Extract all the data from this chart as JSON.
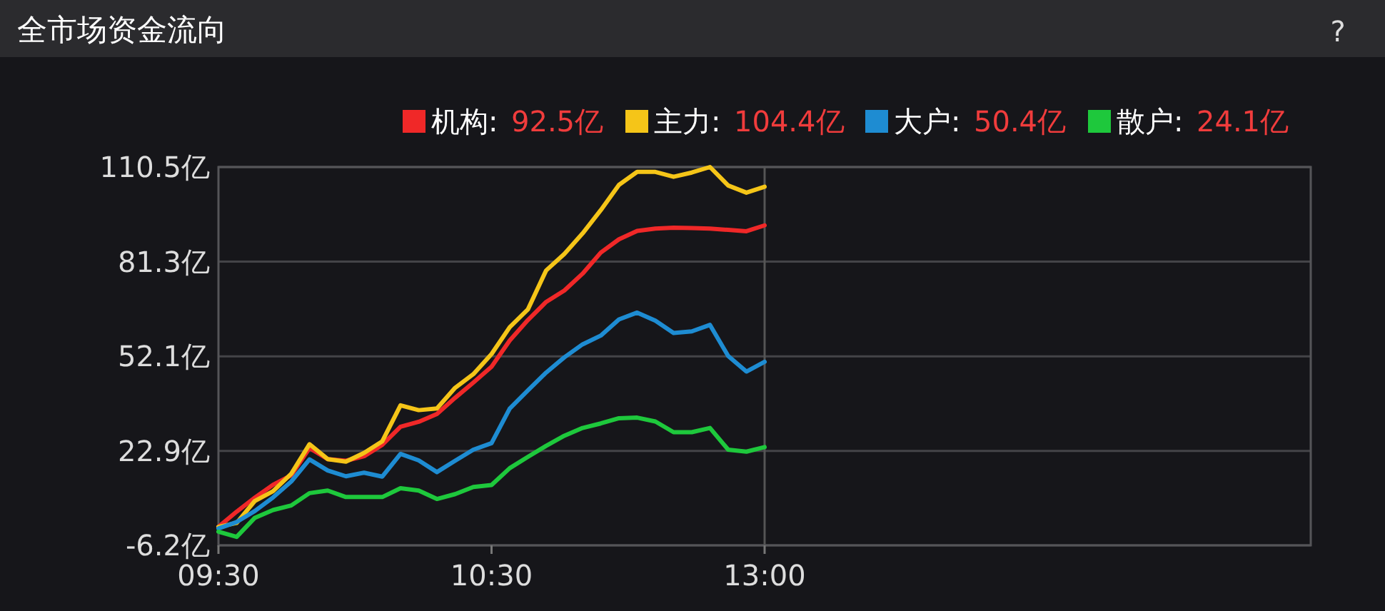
{
  "chart_data": {
    "type": "line",
    "title": "全市场资金流向",
    "legend": "top right",
    "grid": "y",
    "line_style": "solid",
    "marker": "none",
    "categories": [
      "09:30",
      null,
      null,
      null,
      null,
      null,
      null,
      null,
      null,
      null,
      null,
      null,
      null,
      null,
      null,
      "10:30",
      null,
      null,
      null,
      null,
      null,
      null,
      null,
      null,
      null,
      null,
      null,
      null,
      null,
      null,
      "13:00",
      null,
      null,
      null,
      null,
      null,
      null,
      null,
      null,
      null,
      null,
      null,
      null,
      null,
      null,
      null,
      null,
      null,
      null,
      null,
      null,
      null,
      null,
      null,
      null,
      null,
      null,
      null,
      null,
      null,
      null
    ],
    "ylim": [
      -6.2,
      110.5
    ],
    "yticks": [
      {
        "value": -6.2,
        "label": "-6.2亿"
      },
      {
        "value": 22.9,
        "label": "22.9亿"
      },
      {
        "value": 52.1,
        "label": "52.1亿"
      },
      {
        "value": 81.3,
        "label": "81.3亿"
      },
      {
        "value": 110.5,
        "label": "110.5亿"
      }
    ],
    "ref_lines": [
      {
        "axis": "x",
        "value": "13:00",
        "color": "#555555"
      }
    ],
    "annotations": [
      "92.5亿",
      "104.4亿",
      "50.4亿",
      "24.1亿",
      "?"
    ],
    "series": [
      {
        "name": "机构:",
        "color": "#f02828",
        "values": [
          -0.5,
          4.2,
          8.5,
          12.5,
          15.4,
          23.8,
          20.4,
          19.9,
          21.3,
          24.8,
          30.4,
          31.9,
          34.3,
          39.3,
          44.0,
          48.9,
          57.0,
          63.3,
          68.9,
          72.4,
          77.6,
          84.1,
          88.2,
          90.8,
          91.5,
          91.8,
          91.7,
          91.5,
          91.1,
          90.7,
          92.5,
          null,
          null,
          null,
          null,
          null,
          null,
          null,
          null,
          null,
          null,
          null,
          null,
          null,
          null,
          null,
          null,
          null,
          null,
          null,
          null,
          null,
          null,
          null,
          null,
          null,
          null,
          null,
          null,
          null,
          null
        ]
      },
      {
        "name": "主力:",
        "color": "#f5c518",
        "values": [
          -0.5,
          0.7,
          7.5,
          10.5,
          15.9,
          25,
          20.4,
          19.6,
          22.3,
          25.9,
          37,
          35.5,
          36,
          42.4,
          46.6,
          52.8,
          61.1,
          66.6,
          78.6,
          83.7,
          90.0,
          97.2,
          105,
          109,
          109,
          107.5,
          108.8,
          110.5,
          104.8,
          102.6,
          104.4,
          null,
          null,
          null,
          null,
          null,
          null,
          null,
          null,
          null,
          null,
          null,
          null,
          null,
          null,
          null,
          null,
          null,
          null,
          null,
          null,
          null,
          null,
          null,
          null,
          null,
          null,
          null,
          null,
          null,
          null
        ]
      },
      {
        "name": "大户:",
        "color": "#1e8cd2",
        "values": [
          -1,
          1.0,
          4.4,
          8.6,
          13.5,
          20.3,
          16.9,
          15.1,
          16.2,
          15,
          22,
          20,
          16.4,
          19.9,
          23.3,
          25.3,
          36,
          41.6,
          47.1,
          51.8,
          55.8,
          58.5,
          63.5,
          65.6,
          63.1,
          59.3,
          59.8,
          61.8,
          52.2,
          47.4,
          50.4,
          null,
          null,
          null,
          null,
          null,
          null,
          null,
          null,
          null,
          null,
          null,
          null,
          null,
          null,
          null,
          null,
          null,
          null,
          null,
          null,
          null,
          null,
          null,
          null,
          null,
          null,
          null,
          null,
          null,
          null
        ]
      },
      {
        "name": "散户:",
        "color": "#1ec83c",
        "values": [
          -2,
          -3.6,
          2.3,
          4.7,
          6.1,
          9.9,
          10.7,
          8.7,
          8.7,
          8.7,
          11.4,
          10.7,
          8.1,
          9.6,
          11.8,
          12.4,
          17.6,
          21.1,
          24.5,
          27.6,
          30.0,
          31.4,
          33.0,
          33.2,
          32.0,
          28.7,
          28.7,
          30,
          23.3,
          22.7,
          24.1,
          null,
          null,
          null,
          null,
          null,
          null,
          null,
          null,
          null,
          null,
          null,
          null,
          null,
          null,
          null,
          null,
          null,
          null,
          null,
          null,
          null,
          null,
          null,
          null,
          null,
          null,
          null,
          null,
          null,
          null
        ]
      }
    ]
  }
}
